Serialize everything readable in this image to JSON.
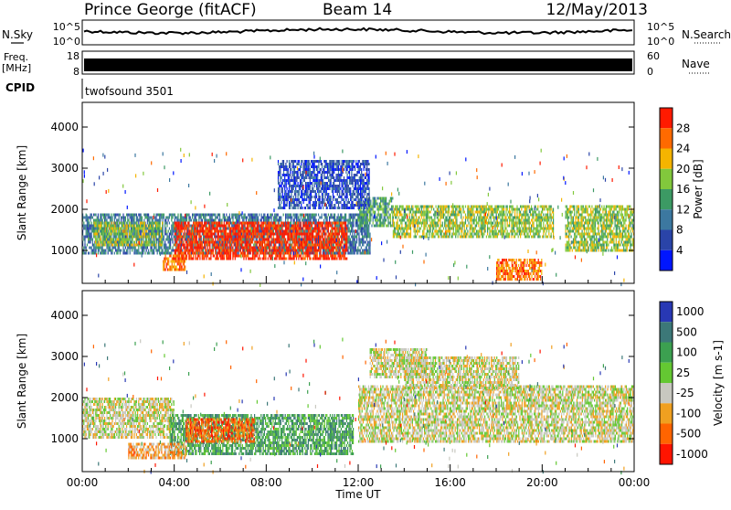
{
  "header": {
    "station": "Prince George (fitACF)",
    "beam": "Beam 14",
    "date": "12/May/2013"
  },
  "panels": {
    "noise": {
      "left_label": "N.Sky",
      "right_label": "N.Search",
      "left_ticks": [
        "10^5",
        "10^0"
      ],
      "right_ticks": [
        "10^5",
        "10^0"
      ]
    },
    "freq": {
      "left_label_line1": "Freq.",
      "left_label_line2": "[MHz]",
      "right_label": "Nave",
      "left_ticks": [
        "18",
        "8"
      ],
      "right_ticks": [
        "60",
        "0"
      ]
    },
    "cpid": {
      "label": "CPID",
      "program": "twofsound 3501"
    }
  },
  "legend_colors": {
    "line": "#000000",
    "ground_scatter": "#c8c8c0"
  },
  "chart_data": [
    {
      "type": "heatmap",
      "name": "power",
      "ylabel": "Slant Range [km]",
      "xlabel": "",
      "ylim": [
        200,
        4600
      ],
      "yticks": [
        "1000",
        "2000",
        "3000",
        "4000"
      ],
      "xticks": [
        "00:00",
        "04:00",
        "08:00",
        "12:00",
        "16:00",
        "20:00",
        "00:00"
      ],
      "colorbar": {
        "label": "Power [dB]",
        "ticks": [
          "4",
          "8",
          "12",
          "16",
          "20",
          "24",
          "28"
        ],
        "colors": [
          "#0016ff",
          "#2a44a8",
          "#3c78a0",
          "#3c9a64",
          "#82c83c",
          "#f5b400",
          "#ff6a00",
          "#ff1a00"
        ]
      },
      "bands": [
        {
          "t0": 0.0,
          "t1": 12.5,
          "r0": 900,
          "r1": 1900,
          "level": 2
        },
        {
          "t0": 0.5,
          "t1": 3.5,
          "r0": 1100,
          "r1": 1700,
          "level": 4
        },
        {
          "t0": 4.0,
          "t1": 11.5,
          "r0": 800,
          "r1": 1700,
          "level": 7
        },
        {
          "t0": 3.5,
          "t1": 4.5,
          "r0": 500,
          "r1": 900,
          "level": 6
        },
        {
          "t0": 12.0,
          "t1": 13.5,
          "r0": 1600,
          "r1": 2300,
          "level": 3
        },
        {
          "t0": 13.5,
          "t1": 20.5,
          "r0": 1300,
          "r1": 2100,
          "level": 4
        },
        {
          "t0": 18.0,
          "t1": 20.0,
          "r0": 300,
          "r1": 800,
          "level": 6
        },
        {
          "t0": 21.0,
          "t1": 24.0,
          "r0": 1000,
          "r1": 2100,
          "level": 4
        },
        {
          "t0": 8.5,
          "t1": 12.5,
          "r0": 2000,
          "r1": 3200,
          "level": 1
        }
      ]
    },
    {
      "type": "heatmap",
      "name": "velocity",
      "ylabel": "Slant Range [km]",
      "xlabel": "Time UT",
      "ylim": [
        200,
        4600
      ],
      "yticks": [
        "1000",
        "2000",
        "3000",
        "4000"
      ],
      "xticks": [
        "00:00",
        "04:00",
        "08:00",
        "12:00",
        "16:00",
        "20:00",
        "00:00"
      ],
      "colorbar": {
        "label": "Velocity [m s-1]",
        "ticks": [
          "1000",
          "500",
          "100",
          "25",
          "-25",
          "-100",
          "-500",
          "-1000"
        ],
        "colors": [
          "#2838b4",
          "#3c7878",
          "#3ca050",
          "#64c832",
          "#c8c8c0",
          "#f0a020",
          "#ff6400",
          "#ff1400"
        ]
      },
      "bands": [
        {
          "t0": 0.0,
          "t1": 4.0,
          "r0": 1000,
          "r1": 2000,
          "level": 4
        },
        {
          "t0": 3.8,
          "t1": 11.8,
          "r0": 600,
          "r1": 1600,
          "level": 2
        },
        {
          "t0": 4.5,
          "t1": 7.5,
          "r0": 900,
          "r1": 1500,
          "level": 6
        },
        {
          "t0": 2.0,
          "t1": 4.5,
          "r0": 500,
          "r1": 900,
          "level": 5
        },
        {
          "t0": 12.0,
          "t1": 24.0,
          "r0": 900,
          "r1": 2300,
          "level": 4
        },
        {
          "t0": 14.0,
          "t1": 19.0,
          "r0": 2200,
          "r1": 3000,
          "level": 4
        },
        {
          "t0": 12.5,
          "t1": 15.0,
          "r0": 2500,
          "r1": 3200,
          "level": 4
        }
      ]
    }
  ]
}
